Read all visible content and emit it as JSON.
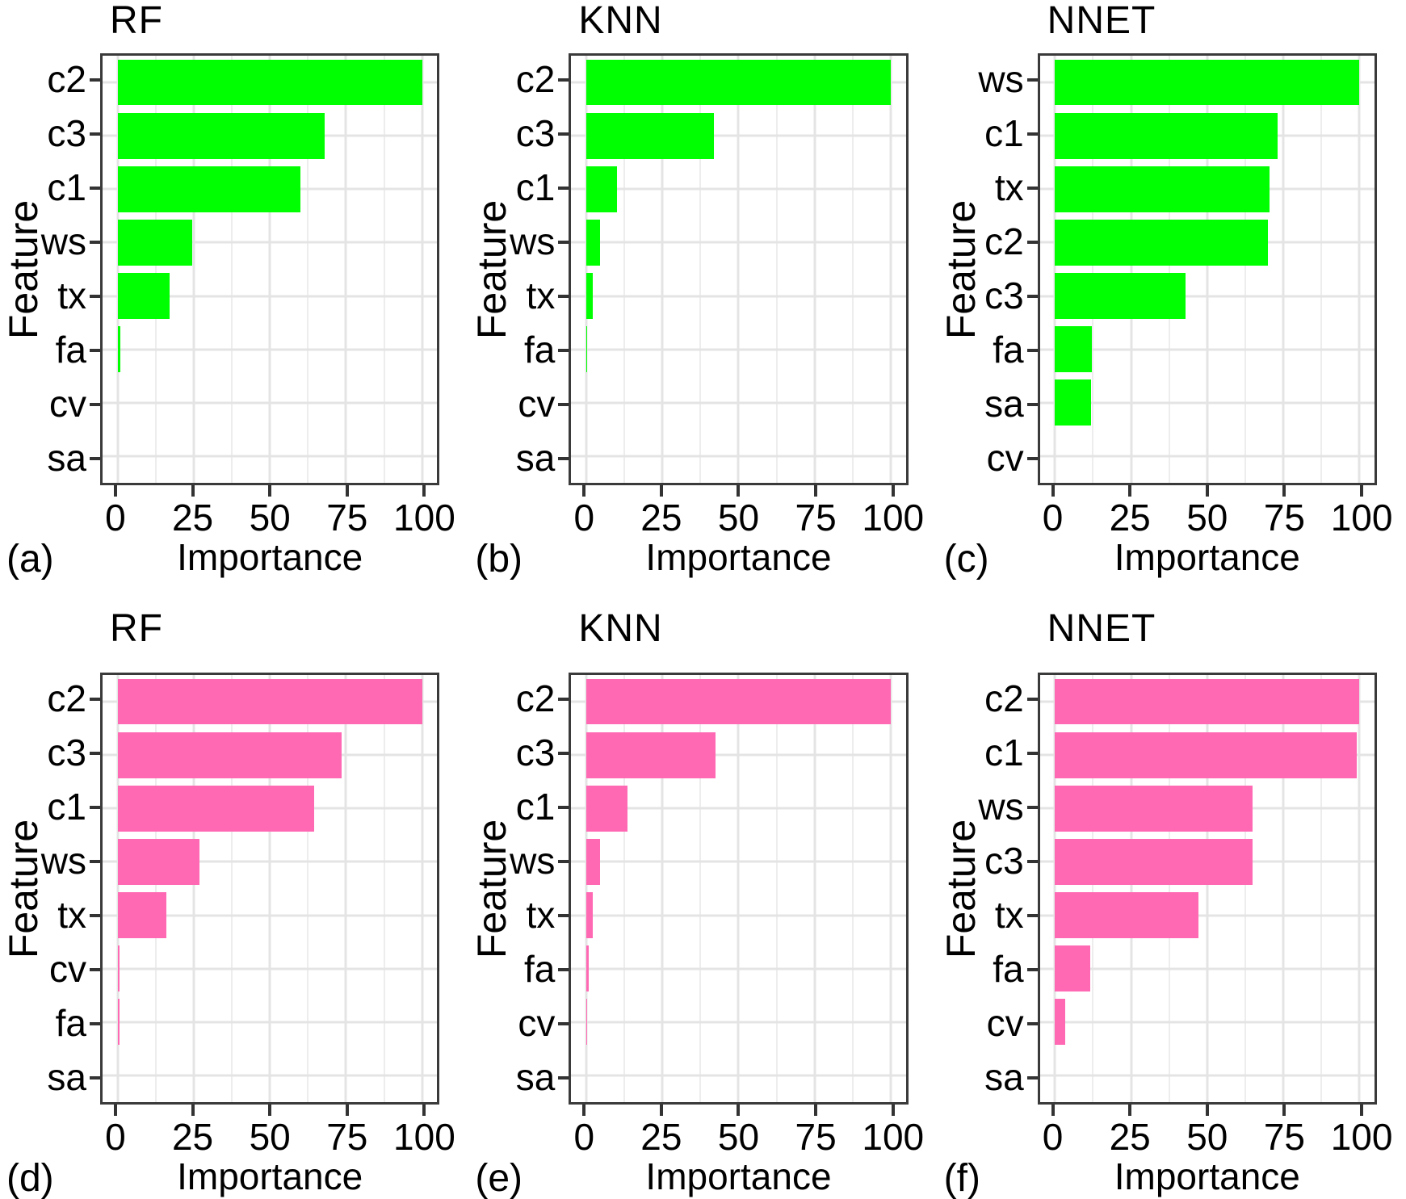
{
  "figure": {
    "background": "#FFFFFF",
    "text_color": "#000000",
    "panel_border_color": "#3A3A3A",
    "grid_major_color": "#E4E4E4",
    "grid_minor_color": "#EDEDED",
    "axis_tick_color": "#333333",
    "top_row_bar_color": "#00FF00",
    "bottom_row_bar_color": "#FF69B4",
    "rows": 2,
    "cols": 3
  },
  "chart_data": [
    {
      "type": "bar",
      "orientation": "horizontal",
      "panel_letter": "(a)",
      "title": "RF",
      "xlabel": "Importance",
      "ylabel": "Feature",
      "bar_color": "#00FF00",
      "xlim": [
        0,
        100
      ],
      "xticks": [
        0,
        25,
        50,
        75,
        100
      ],
      "grid": true,
      "categories": [
        "c2",
        "c3",
        "c1",
        "ws",
        "tx",
        "fa",
        "cv",
        "sa"
      ],
      "values": [
        100,
        68,
        60,
        24.5,
        17,
        1,
        0,
        0
      ]
    },
    {
      "type": "bar",
      "orientation": "horizontal",
      "panel_letter": "(b)",
      "title": "KNN",
      "xlabel": "Importance",
      "ylabel": "Feature",
      "bar_color": "#00FF00",
      "xlim": [
        0,
        100
      ],
      "xticks": [
        0,
        25,
        50,
        75,
        100
      ],
      "grid": true,
      "categories": [
        "c2",
        "c3",
        "c1",
        "ws",
        "tx",
        "fa",
        "cv",
        "sa"
      ],
      "values": [
        100,
        42,
        10,
        4.5,
        2,
        0.4,
        0,
        0
      ]
    },
    {
      "type": "bar",
      "orientation": "horizontal",
      "panel_letter": "(c)",
      "title": "NNET",
      "xlabel": "Importance",
      "ylabel": "Feature",
      "bar_color": "#00FF00",
      "xlim": [
        0,
        100
      ],
      "xticks": [
        0,
        25,
        50,
        75,
        100
      ],
      "grid": true,
      "categories": [
        "ws",
        "c1",
        "tx",
        "c2",
        "c3",
        "fa",
        "sa",
        "cv"
      ],
      "values": [
        100,
        73,
        70.5,
        70,
        43,
        12,
        11.8,
        0
      ]
    },
    {
      "type": "bar",
      "orientation": "horizontal",
      "panel_letter": "(d)",
      "title": "RF",
      "xlabel": "Importance",
      "ylabel": "Feature",
      "bar_color": "#FF69B4",
      "xlim": [
        0,
        100
      ],
      "xticks": [
        0,
        25,
        50,
        75,
        100
      ],
      "grid": true,
      "categories": [
        "c2",
        "c3",
        "c1",
        "ws",
        "tx",
        "cv",
        "fa",
        "sa"
      ],
      "values": [
        100,
        73.5,
        64.5,
        27,
        16,
        0.7,
        0.7,
        0
      ]
    },
    {
      "type": "bar",
      "orientation": "horizontal",
      "panel_letter": "(e)",
      "title": "KNN",
      "xlabel": "Importance",
      "ylabel": "Feature",
      "bar_color": "#FF69B4",
      "xlim": [
        0,
        100
      ],
      "xticks": [
        0,
        25,
        50,
        75,
        100
      ],
      "grid": true,
      "categories": [
        "c2",
        "c3",
        "c1",
        "ws",
        "tx",
        "fa",
        "cv",
        "sa"
      ],
      "values": [
        100,
        42.5,
        13.5,
        4.5,
        2,
        0.7,
        0.4,
        0
      ]
    },
    {
      "type": "bar",
      "orientation": "horizontal",
      "panel_letter": "(f)",
      "title": "NNET",
      "xlabel": "Importance",
      "ylabel": "Feature",
      "bar_color": "#FF69B4",
      "xlim": [
        0,
        100
      ],
      "xticks": [
        0,
        25,
        50,
        75,
        100
      ],
      "grid": true,
      "categories": [
        "c2",
        "c1",
        "ws",
        "c3",
        "tx",
        "fa",
        "cv",
        "sa"
      ],
      "values": [
        100,
        99,
        65,
        65,
        47,
        11.5,
        3.5,
        0
      ]
    }
  ]
}
